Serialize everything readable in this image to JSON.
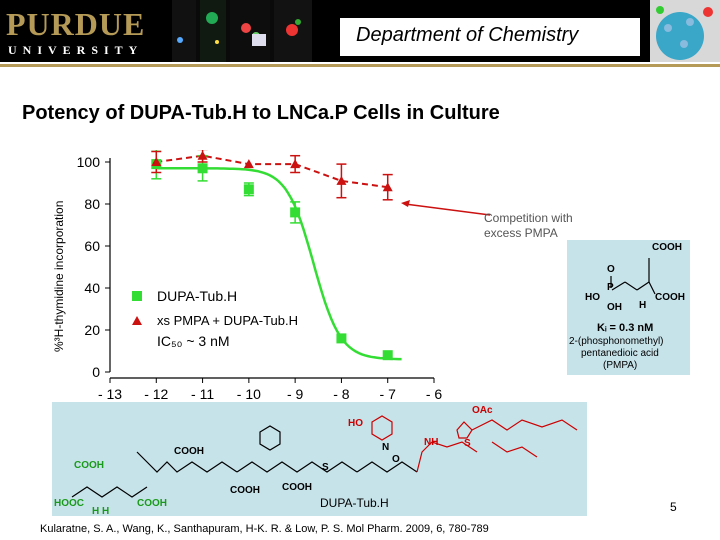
{
  "header": {
    "logo_main": "PURDUE",
    "logo_sub": "UNIVERSITY",
    "department": "Department of Chemistry"
  },
  "slide": {
    "title": "Potency of DUPA-Tub.H to LNCa.P Cells in Culture",
    "y_axis_label": "%³H-thymidine incorporation",
    "annotation_line1": "Competition with",
    "annotation_line2": "excess PMPA",
    "legend_tub": "DUPA-Tub.H",
    "legend_pmpa": "xs PMPA + DUPA-Tub.H",
    "ic50": "IC₅₀ ~ 3 nM",
    "structure_label": "DUPA-Tub.H",
    "page_number": "5",
    "citation": "Kularatne, S. A., Wang, K., Santhapuram, H-K. R. & Low, P. S. Mol Pharm. 2009, 6, 780-789"
  },
  "pmpa": {
    "cooh_top": "COOH",
    "o": "O",
    "p": "P",
    "ho": "HO",
    "oh": "OH",
    "h": "H",
    "cooh_right": "COOH",
    "ki": "Kᵢ = 0.3 nM",
    "name1": "2-(phosphonomethyl)",
    "name2": "pentanedioic acid",
    "name3": "(PMPA)"
  },
  "structure_text": {
    "cooh1": "COOH",
    "cooh2": "COOH",
    "hooc": "HOOC",
    "cooh3": "COOH",
    "cooh4": "COOH",
    "cooh5": "COOH",
    "n": "N",
    "hh": "H H",
    "ho": "HO",
    "oac": "OAc",
    "nh": "NH",
    "s": "S",
    "o": "O"
  },
  "colors": {
    "accent_gold": "#b59a57",
    "series_tub": "#33dd33",
    "series_pmpa": "#cc1111",
    "structure_bg": "#c7e3ea"
  },
  "chart_data": {
    "type": "scatter",
    "title": "",
    "xlabel": "",
    "ylabel": "%³H-thymidine incorporation",
    "xlim": [
      -13,
      -6
    ],
    "ylim": [
      0,
      100
    ],
    "x_ticks": [
      -13,
      -12,
      -11,
      -10,
      -9,
      -8,
      -7,
      -6
    ],
    "y_ticks": [
      0,
      20,
      40,
      60,
      80,
      100
    ],
    "legend_position": "lower-left",
    "series": [
      {
        "name": "DUPA-Tub.H",
        "color": "#33dd33",
        "marker": "square",
        "x": [
          -12,
          -11,
          -10,
          -9,
          -8,
          -7
        ],
        "y": [
          99,
          97,
          87,
          76,
          16,
          8
        ],
        "err": [
          7,
          6,
          3,
          5,
          0,
          0
        ],
        "fit": "sigmoid",
        "fit_params": {
          "top": 97,
          "bottom": 6,
          "logEC50": -8.6,
          "hill": 1.5
        }
      },
      {
        "name": "xs PMPA + DUPA-Tub.H",
        "color": "#cc1111",
        "marker": "triangle",
        "x": [
          -12,
          -11,
          -10,
          -9,
          -8,
          -7
        ],
        "y": [
          100,
          103,
          99,
          99,
          91,
          88
        ],
        "err": [
          5,
          3,
          0,
          4,
          8,
          6
        ],
        "fit": "dashed"
      }
    ]
  }
}
